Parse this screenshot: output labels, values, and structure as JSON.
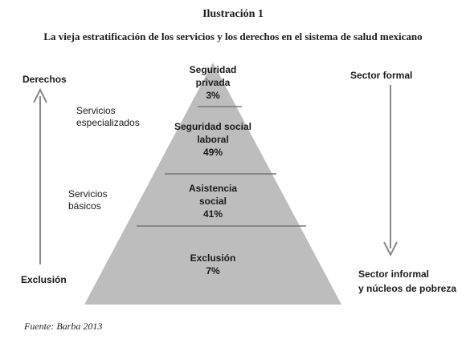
{
  "figure": {
    "number": "Ilustración 1",
    "title": "La vieja estratificación de los servicios y los derechos en el sistema de salud mexicano",
    "source": "Fuente: Barba 2013"
  },
  "left_axis": {
    "top_label": "Derechos",
    "bottom_label": "Exclusión",
    "group_specialized": [
      "Servicios",
      "especializados"
    ],
    "group_basic": [
      "Servicios",
      "básicos"
    ]
  },
  "right_axis": {
    "top_label": "Sector formal",
    "bottom_label": [
      "Sector informal",
      "y núcleos de pobreza"
    ]
  },
  "pyramid": {
    "fill_color": "#bdbdbd",
    "tiers": [
      {
        "name": [
          "Seguridad",
          "privada"
        ],
        "percent": "3%",
        "value": 3
      },
      {
        "name": [
          "Seguridad social",
          "laboral"
        ],
        "percent": "49%",
        "value": 49
      },
      {
        "name": [
          "Asistencia",
          "social"
        ],
        "percent": "41%",
        "value": 41
      },
      {
        "name": [
          "Exclusión"
        ],
        "percent": "7%",
        "value": 7
      }
    ]
  }
}
